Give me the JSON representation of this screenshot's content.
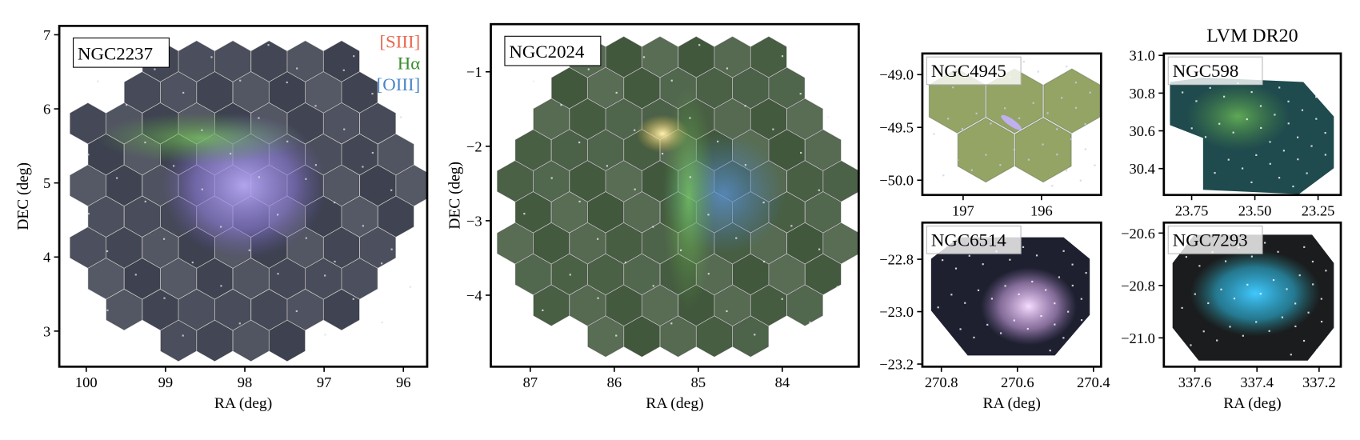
{
  "chart_data": [
    {
      "type": "image",
      "label": "NGC2237",
      "xlabel": "RA (deg)",
      "ylabel": "DEC (deg)",
      "xlim": [
        100.34,
        95.7
      ],
      "ylim": [
        2.52,
        7.12
      ],
      "xticks": [
        100,
        99,
        98,
        97,
        96
      ],
      "yticks": [
        3,
        4,
        5,
        6,
        7
      ],
      "legend": [
        {
          "name": "[SIII]",
          "color": "#e8684f"
        },
        {
          "name": "Hα",
          "color": "#3a8d2f"
        },
        {
          "name": "[OIII]",
          "color": "#4a86c8"
        }
      ]
    },
    {
      "type": "image",
      "label": "NGC2024",
      "xlabel": "RA (deg)",
      "ylabel": "DEC (deg)",
      "xlim": [
        87.47,
        83.09
      ],
      "ylim": [
        -4.96,
        -0.36
      ],
      "xticks": [
        87,
        86,
        85,
        84
      ],
      "yticks": [
        {
          "value": -4,
          "label": "−4"
        },
        {
          "value": -3,
          "label": "−3"
        },
        {
          "value": -2,
          "label": "−2"
        },
        {
          "value": -1,
          "label": "−1"
        }
      ]
    },
    {
      "type": "image",
      "label": "NGC4945",
      "xlim": [
        197.52,
        195.24
      ],
      "ylim": [
        -50.14,
        -48.8
      ],
      "xticks": [
        197,
        196
      ],
      "yticks": [
        {
          "value": -50,
          "label": "−50.0"
        },
        {
          "value": -49.5,
          "label": "−49.5"
        },
        {
          "value": -49,
          "label": "−49.0"
        }
      ]
    },
    {
      "type": "image",
      "label": "NGC598",
      "title": "LVM DR20",
      "xlim": [
        23.86,
        23.16
      ],
      "ylim": [
        30.26,
        31.01
      ],
      "xticks": [
        23.75,
        {
          "value": 23.5,
          "label": "23.50"
        },
        23.25
      ],
      "yticks": [
        30.4,
        30.6,
        30.8,
        {
          "value": 31,
          "label": "31.0"
        }
      ]
    },
    {
      "type": "image",
      "label": "NGC6514",
      "xlabel": "RA (deg)",
      "xlim": [
        270.85,
        270.38
      ],
      "ylim": [
        -23.21,
        -22.66
      ],
      "xticks": [
        270.8,
        270.6,
        270.4
      ],
      "yticks": [
        {
          "value": -23.2,
          "label": "−23.2"
        },
        {
          "value": -23,
          "label": "−23.0"
        },
        {
          "value": -22.8,
          "label": "−22.8"
        }
      ]
    },
    {
      "type": "image",
      "label": "NGC7293",
      "xlabel": "RA (deg)",
      "xlim": [
        337.7,
        337.13
      ],
      "ylim": [
        -21.11,
        -20.56
      ],
      "xticks": [
        337.6,
        337.4,
        337.2
      ],
      "yticks": [
        {
          "value": -21,
          "label": "−21.0"
        },
        {
          "value": -20.8,
          "label": "−20.8"
        },
        {
          "value": -20.6,
          "label": "−20.6"
        }
      ]
    }
  ]
}
